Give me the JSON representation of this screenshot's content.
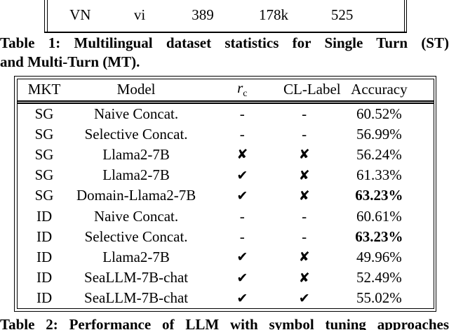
{
  "table1": {
    "last_row": [
      "VN",
      "vi",
      "389",
      "178k",
      "525"
    ],
    "caption_line1": "Table 1: Multilingual dataset statistics for Single Turn (ST)",
    "caption_line2": "and Multi-Turn (MT)."
  },
  "table2": {
    "headers": {
      "mkt": "MKT",
      "model": "Model",
      "rc_base": "r",
      "rc_sub": "c",
      "cl_label": "CL-Label",
      "accuracy": "Accuracy"
    },
    "rows": [
      {
        "mkt": "SG",
        "model": "Naive Concat.",
        "rc": "-",
        "cl": "-",
        "accuracy": "60.52%",
        "bold": false
      },
      {
        "mkt": "SG",
        "model": "Selective Concat.",
        "rc": "-",
        "cl": "-",
        "accuracy": "56.99%",
        "bold": false
      },
      {
        "mkt": "SG",
        "model": "Llama2-7B",
        "rc": "✘",
        "cl": "✘",
        "accuracy": "56.24%",
        "bold": false
      },
      {
        "mkt": "SG",
        "model": "Llama2-7B",
        "rc": "✔",
        "cl": "✘",
        "accuracy": "61.33%",
        "bold": false
      },
      {
        "mkt": "SG",
        "model": "Domain-Llama2-7B",
        "rc": "✔",
        "cl": "✘",
        "accuracy": "63.23%",
        "bold": true
      },
      {
        "mkt": "ID",
        "model": "Naive Concat.",
        "rc": "-",
        "cl": "-",
        "accuracy": "60.61%",
        "bold": false
      },
      {
        "mkt": "ID",
        "model": "Selective Concat.",
        "rc": "-",
        "cl": "-",
        "accuracy": "63.23%",
        "bold": true
      },
      {
        "mkt": "ID",
        "model": "Llama2-7B",
        "rc": "✔",
        "cl": "✘",
        "accuracy": "49.96%",
        "bold": false
      },
      {
        "mkt": "ID",
        "model": "SeaLLM-7B-chat",
        "rc": "✔",
        "cl": "✘",
        "accuracy": "52.49%",
        "bold": false
      },
      {
        "mkt": "ID",
        "model": "SeaLLM-7B-chat",
        "rc": "✔",
        "cl": "✔",
        "accuracy": "55.02%",
        "bold": false
      }
    ],
    "caption": "Table 2: Performance of LLM with symbol tuning approaches"
  },
  "symbols": {
    "check": "✔",
    "cross": "✘",
    "dash": "-"
  },
  "colors": {
    "text": "#000000",
    "background": "#ffffff",
    "border": "#000000"
  }
}
